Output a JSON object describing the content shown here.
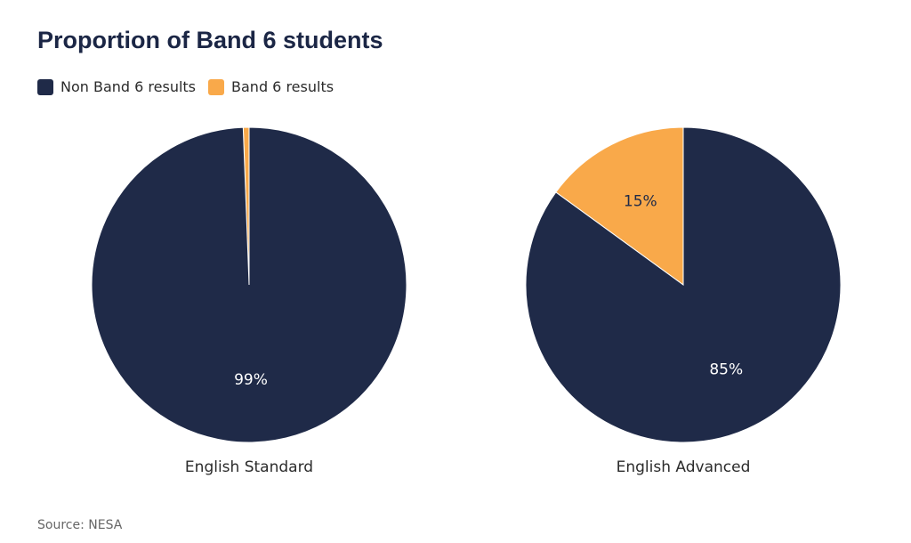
{
  "title": "Proportion of Band 6 students",
  "legend": [
    {
      "label": "Non Band 6 results",
      "color": "#1f2a48"
    },
    {
      "label": "Band 6 results",
      "color": "#f9a94a"
    }
  ],
  "chart_data": [
    {
      "type": "pie",
      "title": "English Standard",
      "slices": [
        {
          "name": "Band 6 results",
          "value": 0.6,
          "color": "#f9a94a",
          "label": ""
        },
        {
          "name": "Non Band 6 results",
          "value": 99.4,
          "color": "#1f2a48",
          "label": "99%"
        }
      ]
    },
    {
      "type": "pie",
      "title": "English Advanced",
      "slices": [
        {
          "name": "Band 6 results",
          "value": 15,
          "color": "#f9a94a",
          "label": "15%"
        },
        {
          "name": "Non Band 6 results",
          "value": 85,
          "color": "#1f2a48",
          "label": "85%"
        }
      ]
    }
  ],
  "source": "Source: NESA"
}
